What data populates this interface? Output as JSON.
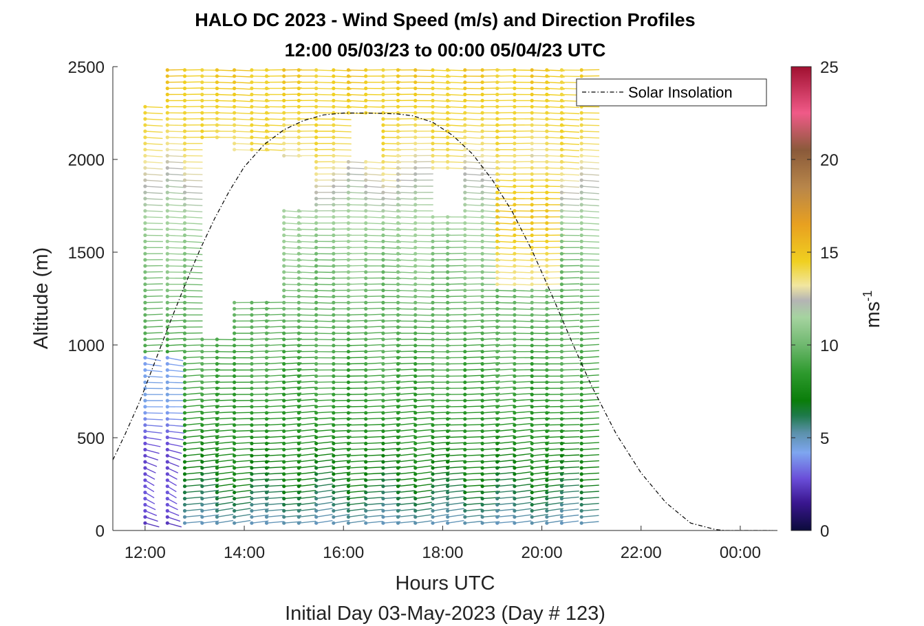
{
  "chart_data": {
    "type": "scatter",
    "subtype": "wind-barb-profile",
    "title": "HALO DC 2023 - Wind Speed (m/s) and Direction Profiles",
    "subtitle": "12:00 05/03/23 to 00:00 05/04/23  UTC",
    "xlabel": "Hours UTC",
    "ylabel": "Altitude (m)",
    "footer": "Initial Day 03-May-2023 (Day # 123)",
    "xlim": [
      11.35,
      24.75
    ],
    "ylim": [
      0,
      2500
    ],
    "x_ticks": [
      12,
      14,
      16,
      18,
      20,
      22,
      24
    ],
    "x_tick_labels": [
      "12:00",
      "14:00",
      "16:00",
      "18:00",
      "20:00",
      "22:00",
      "00:00"
    ],
    "y_ticks": [
      0,
      500,
      1000,
      1500,
      2000,
      2500
    ],
    "y_tick_labels": [
      "0",
      "500",
      "1000",
      "1500",
      "2000",
      "2500"
    ],
    "colorbar": {
      "label": "ms",
      "label_exponent": "-1",
      "range": [
        0,
        25
      ],
      "ticks": [
        0,
        5,
        10,
        15,
        20,
        25
      ],
      "tick_labels": [
        "0",
        "5",
        "10",
        "15",
        "20",
        "25"
      ],
      "colors": [
        {
          "v": 0,
          "c": "#0b0b3b"
        },
        {
          "v": 1.5,
          "c": "#3a1690"
        },
        {
          "v": 2.8,
          "c": "#6a4ed8"
        },
        {
          "v": 4.2,
          "c": "#7ea6f0"
        },
        {
          "v": 5.3,
          "c": "#5a90a8"
        },
        {
          "v": 6.2,
          "c": "#1e7a4a"
        },
        {
          "v": 7.0,
          "c": "#0a7d0a"
        },
        {
          "v": 8.5,
          "c": "#2e9a2e"
        },
        {
          "v": 10.0,
          "c": "#6fb86f"
        },
        {
          "v": 11.5,
          "c": "#a6d3a0"
        },
        {
          "v": 12.4,
          "c": "#b4b4b4"
        },
        {
          "v": 13.2,
          "c": "#f1e6a0"
        },
        {
          "v": 14.5,
          "c": "#f0d020"
        },
        {
          "v": 16.5,
          "c": "#e8a020"
        },
        {
          "v": 18.5,
          "c": "#b8864a"
        },
        {
          "v": 20.5,
          "c": "#8a5a3a"
        },
        {
          "v": 22.5,
          "c": "#f05a88"
        },
        {
          "v": 25.0,
          "c": "#a01030"
        }
      ]
    },
    "legend": {
      "position": "top-right",
      "entries": [
        "Solar Insolation"
      ]
    },
    "series": [
      {
        "name": "Solar Insolation",
        "style": "dashed",
        "color": "#000000",
        "x": [
          11.35,
          11.6,
          11.9,
          12.2,
          12.5,
          12.8,
          13.1,
          13.4,
          13.7,
          14.0,
          14.4,
          14.8,
          15.2,
          15.6,
          16.0,
          16.4,
          16.8,
          17.1,
          17.4,
          17.8,
          18.2,
          18.6,
          19.0,
          19.4,
          19.8,
          20.2,
          20.6,
          21.0,
          21.5,
          22.0,
          22.5,
          23.0,
          23.5,
          23.7,
          24.0,
          24.3,
          24.65
        ],
        "y": [
          380,
          520,
          700,
          910,
          1120,
          1320,
          1510,
          1680,
          1830,
          1960,
          2080,
          2160,
          2210,
          2240,
          2250,
          2250,
          2248,
          2245,
          2235,
          2200,
          2130,
          2030,
          1890,
          1720,
          1510,
          1270,
          1020,
          780,
          520,
          310,
          150,
          40,
          5,
          0,
          0,
          0,
          0
        ]
      }
    ],
    "barbs": {
      "times": [
        12.0,
        12.45,
        12.8,
        13.15,
        13.45,
        13.8,
        14.15,
        14.45,
        14.8,
        15.1,
        15.45,
        15.8,
        16.1,
        16.45,
        16.8,
        17.1,
        17.45,
        17.8,
        18.1,
        18.45,
        18.8,
        19.1,
        19.45,
        19.8,
        20.1,
        20.4,
        20.8
      ],
      "bottom_altitude": 40,
      "top_altitudes": [
        2310,
        2500,
        2500,
        2500,
        2500,
        2500,
        2500,
        2500,
        2500,
        2500,
        2500,
        2500,
        2500,
        2500,
        2500,
        2500,
        2500,
        2500,
        2500,
        2500,
        2500,
        2500,
        2500,
        2500,
        2500,
        2500,
        2500
      ],
      "altitude_step": 33,
      "speed_profile_altitudes": [
        0,
        250,
        500,
        800,
        1100,
        1500,
        1800,
        2100,
        2500
      ],
      "speed_profile_mps": [
        4.8,
        6.8,
        8.0,
        8.8,
        9.5,
        10.6,
        12.0,
        14.0,
        14.8
      ],
      "direction_profile_altitudes": [
        0,
        300,
        700,
        1200,
        1800,
        2500
      ],
      "direction_profile_deg": [
        250,
        255,
        262,
        270,
        275,
        272
      ],
      "early_calm_times": [
        12.0,
        12.45
      ],
      "early_calm_altitude_top": 950,
      "early_calm_speed_mps": 2.0,
      "gaps": [
        {
          "t0": 13.1,
          "t1": 13.5,
          "a0": 1050,
          "a1": 2100
        },
        {
          "t0": 13.5,
          "t1": 14.5,
          "a0": 1250,
          "a1": 2050
        },
        {
          "t0": 14.5,
          "t1": 15.2,
          "a0": 1750,
          "a1": 2000
        },
        {
          "t0": 17.6,
          "t1": 18.1,
          "a0": 1700,
          "a1": 1950
        },
        {
          "t0": 16.0,
          "t1": 16.5,
          "a0": 2000,
          "a1": 2250
        }
      ],
      "fast_zone": {
        "t0": 19.1,
        "t1": 20.2,
        "a0": 1300,
        "a1": 2000,
        "speed_mps": 14.2
      }
    }
  }
}
